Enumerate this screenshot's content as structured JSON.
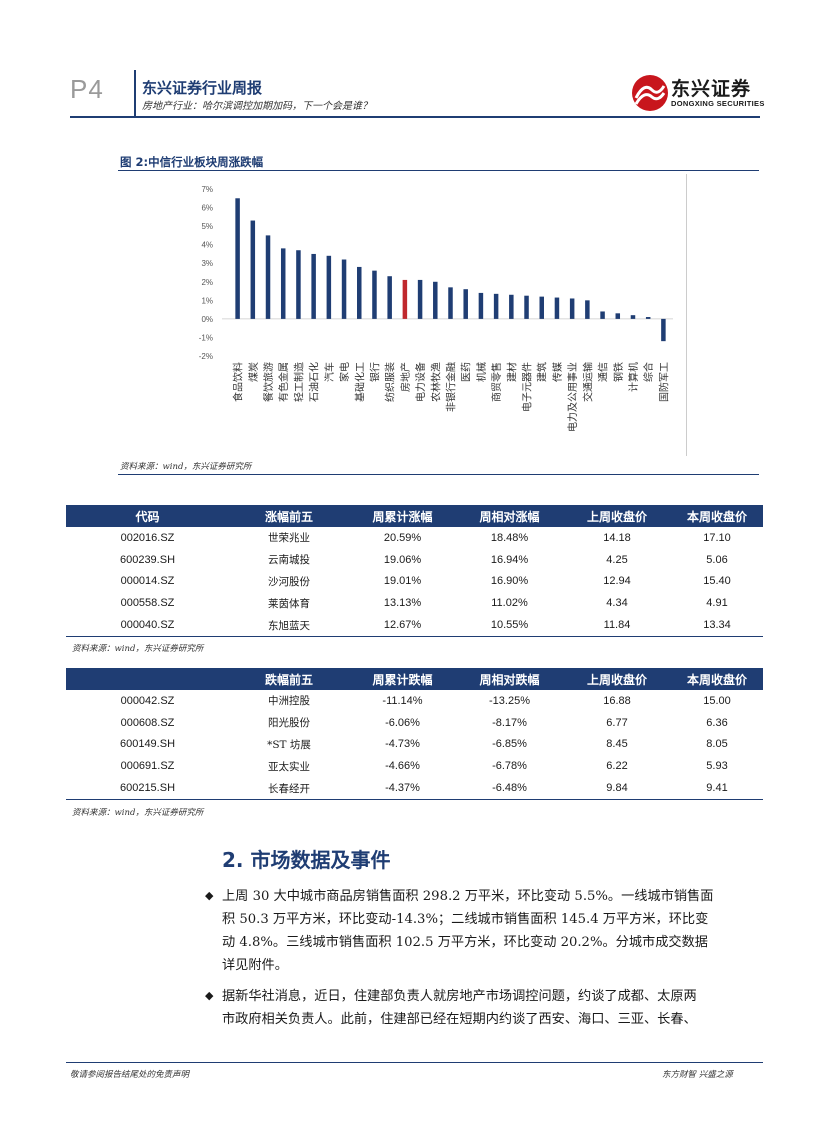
{
  "header": {
    "page_number": "P4",
    "title": "东兴证券行业周报",
    "subtitle": "房地产行业：哈尔滨调控加期加码，下一个会是谁？",
    "logo_cn": "东兴证券",
    "logo_en": "DONGXING SECURITIES",
    "brand_color": "#1f3d73",
    "logo_color": "#c8161d"
  },
  "figure": {
    "title": "图 2:中信行业板块周涨跌幅",
    "source": "资料来源：wind，东兴证券研究所"
  },
  "chart_data": {
    "type": "bar",
    "title": "图 2:中信行业板块周涨跌幅",
    "xlabel": "",
    "ylabel": "",
    "ylim": [
      -2,
      7
    ],
    "yticks": [
      "7%",
      "6%",
      "5%",
      "4%",
      "3%",
      "2%",
      "1%",
      "0%",
      "-1%",
      "-2%"
    ],
    "categories": [
      "食品饮料",
      "煤炭",
      "餐饮旅游",
      "有色金属",
      "轻工制造",
      "石油石化",
      "汽车",
      "家电",
      "基础化工",
      "银行",
      "纺织服装",
      "房地产",
      "电力设备",
      "农林牧渔",
      "非银行金融",
      "医药",
      "机械",
      "商贸零售",
      "建材",
      "电子元器件",
      "建筑",
      "传媒",
      "电力及公用事业",
      "交通运输",
      "通信",
      "钢铁",
      "计算机",
      "综合",
      "国防军工"
    ],
    "values": [
      6.5,
      5.3,
      4.5,
      3.8,
      3.7,
      3.5,
      3.4,
      3.2,
      2.8,
      2.6,
      2.3,
      2.1,
      2.1,
      2.0,
      1.7,
      1.6,
      1.4,
      1.35,
      1.3,
      1.25,
      1.2,
      1.15,
      1.1,
      1.0,
      0.4,
      0.3,
      0.2,
      0.1,
      -1.2
    ],
    "highlight": "房地产",
    "bar_color": "#1f3d73",
    "highlight_color": "#c0282d"
  },
  "table1": {
    "headers": [
      "代码",
      "涨幅前五",
      "周累计涨幅",
      "周相对涨幅",
      "上周收盘价",
      "本周收盘价"
    ],
    "rows": [
      [
        "002016.SZ",
        "世荣兆业",
        "20.59%",
        "18.48%",
        "14.18",
        "17.10"
      ],
      [
        "600239.SH",
        "云南城投",
        "19.06%",
        "16.94%",
        "4.25",
        "5.06"
      ],
      [
        "000014.SZ",
        "沙河股份",
        "19.01%",
        "16.90%",
        "12.94",
        "15.40"
      ],
      [
        "000558.SZ",
        "莱茵体育",
        "13.13%",
        "11.02%",
        "4.34",
        "4.91"
      ],
      [
        "000040.SZ",
        "东旭蓝天",
        "12.67%",
        "10.55%",
        "11.84",
        "13.34"
      ]
    ],
    "source": "资料来源：wind，东兴证券研究所"
  },
  "table2": {
    "headers": [
      "",
      "跌幅前五",
      "周累计跌幅",
      "周相对跌幅",
      "上周收盘价",
      "本周收盘价"
    ],
    "rows": [
      [
        "000042.SZ",
        "中洲控股",
        "-11.14%",
        "-13.25%",
        "16.88",
        "15.00"
      ],
      [
        "000608.SZ",
        "阳光股份",
        "-6.06%",
        "-8.17%",
        "6.77",
        "6.36"
      ],
      [
        "600149.SH",
        "*ST 坊展",
        "-4.73%",
        "-6.85%",
        "8.45",
        "8.05"
      ],
      [
        "000691.SZ",
        "亚太实业",
        "-4.66%",
        "-6.78%",
        "6.22",
        "5.93"
      ],
      [
        "600215.SH",
        "长春经开",
        "-4.37%",
        "-6.48%",
        "9.84",
        "9.41"
      ]
    ],
    "source": "资料来源：wind，东兴证券研究所"
  },
  "section": {
    "title": "2. 市场数据及事件",
    "bullet_symbol": "◆",
    "para1_lines": [
      "上周 30 大中城市商品房销售面积 298.2 万平米，环比变动 5.5%。一线城市销售面",
      "积 50.3 万平方米，环比变动-14.3%；二线城市销售面积 145.4 万平方米，环比变",
      "动 4.8%。三线城市销售面积 102.5 万平方米，环比变动 20.2%。分城市成交数据",
      "详见附件。"
    ],
    "para2_lines": [
      "据新华社消息，近日，住建部负责人就房地产市场调控问题，约谈了成都、太原两",
      "市政府相关负责人。此前，住建部已经在短期内约谈了西安、海口、三亚、长春、"
    ]
  },
  "footer": {
    "left": "敬请参阅报告结尾处的免责声明",
    "right": "东方财智  兴盛之源"
  }
}
